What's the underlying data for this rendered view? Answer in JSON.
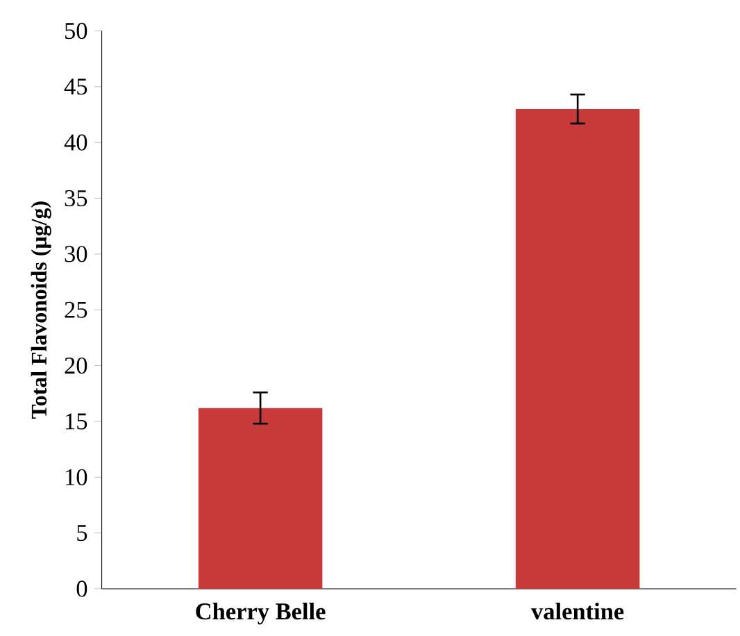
{
  "chart_data": {
    "type": "bar",
    "ylabel": "Total Flavonoids (µg/g)",
    "categories": [
      "Cherry Belle",
      "valentine"
    ],
    "values": [
      16.2,
      43.0
    ],
    "errors": [
      1.4,
      1.3
    ],
    "color": "#c83a3a",
    "ylim": [
      0,
      50
    ],
    "yticks": [
      0,
      5,
      10,
      15,
      20,
      25,
      30,
      35,
      40,
      45,
      50
    ],
    "grid": false
  }
}
